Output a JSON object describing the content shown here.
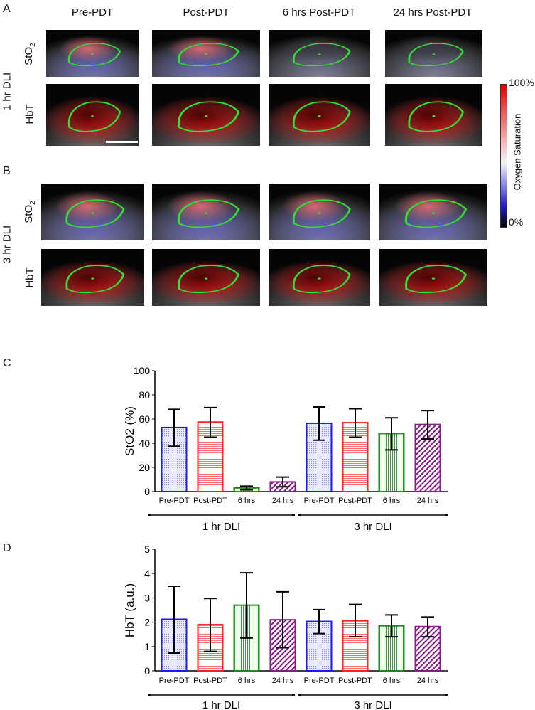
{
  "panel_labels": {
    "a": "A",
    "b": "B",
    "c": "C",
    "d": "D"
  },
  "image_grid": {
    "column_titles": [
      "Pre-PDT",
      "Post-PDT",
      "6 hrs Post-PDT",
      "24 hrs Post-PDT"
    ],
    "groups": [
      {
        "label": "1 hr DLI",
        "rows": [
          "StO",
          "HbT"
        ]
      },
      {
        "label": "3 hr DLI",
        "rows": [
          "StO",
          "HbT"
        ]
      }
    ],
    "sto2_subscript": "2",
    "scale_bar": "3 mm",
    "colorbar": {
      "top": "100%",
      "bottom": "0%",
      "label": "Oxygen Saturation",
      "colors": [
        "#e00000",
        "#f4f4f8",
        "#2020d0",
        "#000000"
      ]
    },
    "roi_color": "#33dd33"
  },
  "chart_data": [
    {
      "type": "bar",
      "ylabel": "StO2 (%)",
      "ylim": [
        0,
        100
      ],
      "yticks": [
        0,
        20,
        40,
        60,
        80,
        100
      ],
      "categories": [
        "Pre-PDT",
        "Post-PDT",
        "6 hrs",
        "24 hrs",
        "Pre-PDT",
        "Post-PDT",
        "6 hrs",
        "24 hrs"
      ],
      "groups": [
        "1 hr DLI",
        "3 hr DLI"
      ],
      "values": [
        53,
        57.5,
        3,
        8,
        56.5,
        57,
        48,
        55.5
      ],
      "error_low": [
        37.5,
        45,
        1.5,
        4,
        42.5,
        45,
        34.5,
        43.5
      ],
      "error_high": [
        68,
        69.5,
        4.5,
        12,
        70,
        68.5,
        61,
        67
      ],
      "colors": [
        "#1a1aff",
        "#ff2020",
        "#1a8a1a",
        "#8a1a8a",
        "#1a1aff",
        "#ff2020",
        "#1a8a1a",
        "#8a1a8a"
      ]
    },
    {
      "type": "bar",
      "ylabel": "HbT (a.u.)",
      "ylim": [
        0,
        5
      ],
      "yticks": [
        0,
        1,
        2,
        3,
        4,
        5
      ],
      "categories": [
        "Pre-PDT",
        "Post-PDT",
        "6 hrs",
        "24 hrs",
        "Pre-PDT",
        "Post-PDT",
        "6 hrs",
        "24 hrs"
      ],
      "groups": [
        "1 hr DLI",
        "3 hr DLI"
      ],
      "values": [
        2.12,
        1.9,
        2.7,
        2.1,
        2.03,
        2.07,
        1.85,
        1.82
      ],
      "error_low": [
        0.73,
        0.8,
        1.35,
        0.95,
        1.53,
        1.4,
        1.4,
        1.4
      ],
      "error_high": [
        3.48,
        2.98,
        4.03,
        3.25,
        2.52,
        2.73,
        2.3,
        2.21
      ],
      "colors": [
        "#1a1aff",
        "#ff2020",
        "#1a8a1a",
        "#8a1a8a",
        "#1a1aff",
        "#ff2020",
        "#1a8a1a",
        "#8a1a8a"
      ]
    }
  ]
}
